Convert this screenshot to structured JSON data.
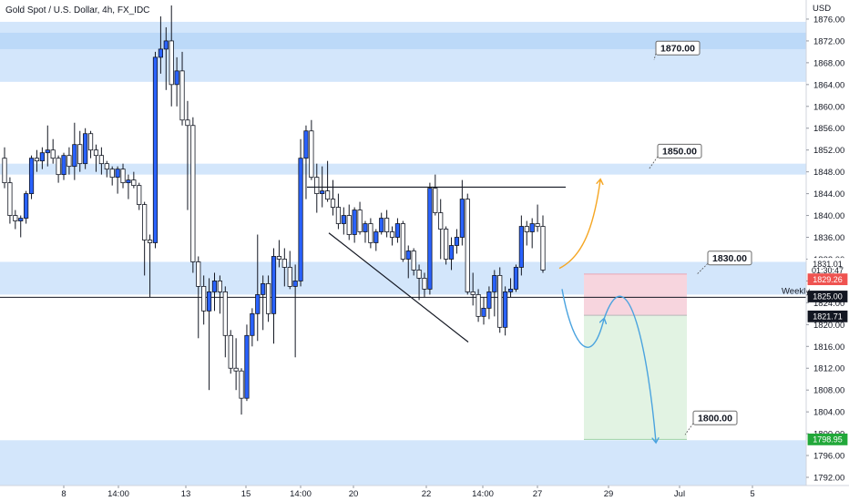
{
  "chart_data": {
    "type": "candlestick",
    "title": "Gold Spot / U.S. Dollar, 4h, FX_IDC",
    "currency": "USD",
    "y_ticks": [
      "1876.00",
      "1872.00",
      "1868.00",
      "1864.00",
      "1860.00",
      "1856.00",
      "1852.00",
      "1848.00",
      "1844.00",
      "1840.00",
      "1836.00",
      "1832.00",
      "1828.00",
      "1824.00",
      "1820.00",
      "1816.00",
      "1812.00",
      "1808.00",
      "1804.00",
      "1800.00",
      "1796.00",
      "1792.00"
    ],
    "ylim": [
      1790.5,
      1879.5
    ],
    "x_ticks": [
      {
        "label": "8",
        "x": 70
      },
      {
        "label": "14:00",
        "x": 130
      },
      {
        "label": "13",
        "x": 204
      },
      {
        "label": "15",
        "x": 270
      },
      {
        "label": "14:00",
        "x": 330
      },
      {
        "label": "20",
        "x": 388
      },
      {
        "label": "22",
        "x": 468
      },
      {
        "label": "14:00",
        "x": 530
      },
      {
        "label": "27",
        "x": 590
      },
      {
        "label": "29",
        "x": 668
      },
      {
        "label": "Jul",
        "x": 746
      },
      {
        "label": "5",
        "x": 826
      }
    ],
    "zones": [
      {
        "low": 1864.5,
        "high": 1875.5,
        "label": "1870.00"
      },
      {
        "low": 1870.5,
        "high": 1873.5,
        "label": ""
      },
      {
        "low": 1847.5,
        "high": 1849.5,
        "label": "1850.00"
      },
      {
        "low": 1825.5,
        "high": 1831.5,
        "label": "1830.00"
      },
      {
        "low": 1790.5,
        "high": 1798.8,
        "label": "1800.00"
      }
    ],
    "weekly_level": {
      "value": 1825.0,
      "label": "Weekly"
    },
    "candles": [
      [
        1850.5,
        1852.5,
        1845.0,
        1846.0
      ],
      [
        1846.0,
        1847.0,
        1838.5,
        1840.0
      ],
      [
        1840.0,
        1841.0,
        1837.5,
        1839.0
      ],
      [
        1839.0,
        1840.0,
        1836.0,
        1839.5
      ],
      [
        1839.5,
        1844.5,
        1838.5,
        1844.0
      ],
      [
        1844.0,
        1851.0,
        1843.0,
        1850.5
      ],
      [
        1850.5,
        1852.0,
        1848.0,
        1850.0
      ],
      [
        1850.0,
        1852.5,
        1848.5,
        1851.5
      ],
      [
        1851.5,
        1856.5,
        1849.0,
        1852.0
      ],
      [
        1852.0,
        1854.0,
        1849.5,
        1850.5
      ],
      [
        1850.5,
        1851.0,
        1846.0,
        1847.5
      ],
      [
        1847.5,
        1851.5,
        1846.5,
        1851.0
      ],
      [
        1851.0,
        1852.5,
        1847.5,
        1849.0
      ],
      [
        1849.0,
        1857.0,
        1846.5,
        1853.0
      ],
      [
        1853.0,
        1855.5,
        1848.0,
        1849.5
      ],
      [
        1849.5,
        1856.0,
        1848.5,
        1855.0
      ],
      [
        1855.0,
        1855.5,
        1850.5,
        1852.0
      ],
      [
        1852.0,
        1853.0,
        1848.0,
        1851.0
      ],
      [
        1851.0,
        1852.5,
        1847.5,
        1849.5
      ],
      [
        1849.5,
        1850.0,
        1847.0,
        1848.5
      ],
      [
        1848.5,
        1849.0,
        1845.5,
        1847.0
      ],
      [
        1847.0,
        1849.0,
        1844.0,
        1848.5
      ],
      [
        1848.5,
        1849.5,
        1845.0,
        1846.0
      ],
      [
        1846.0,
        1847.5,
        1843.0,
        1846.5
      ],
      [
        1846.5,
        1848.0,
        1845.0,
        1845.5
      ],
      [
        1845.5,
        1846.0,
        1841.0,
        1842.0
      ],
      [
        1842.0,
        1842.5,
        1829.0,
        1835.5
      ],
      [
        1835.5,
        1836.5,
        1825.0,
        1835.0
      ],
      [
        1835.0,
        1870.0,
        1834.0,
        1869.0
      ],
      [
        1869.0,
        1876.5,
        1866.0,
        1870.5
      ],
      [
        1870.5,
        1874.5,
        1863.0,
        1872.0
      ],
      [
        1872.0,
        1878.5,
        1860.0,
        1864.0
      ],
      [
        1864.0,
        1869.0,
        1860.0,
        1866.5
      ],
      [
        1866.5,
        1870.0,
        1856.5,
        1857.5
      ],
      [
        1857.5,
        1861.0,
        1841.0,
        1856.5
      ],
      [
        1856.5,
        1858.0,
        1829.5,
        1831.5
      ],
      [
        1831.5,
        1832.5,
        1817.5,
        1827.0
      ],
      [
        1827.0,
        1829.0,
        1820.0,
        1822.5
      ],
      [
        1822.5,
        1828.5,
        1808.0,
        1826.0
      ],
      [
        1826.0,
        1829.5,
        1822.5,
        1828.0
      ],
      [
        1828.0,
        1829.0,
        1822.0,
        1826.0
      ],
      [
        1826.0,
        1827.0,
        1814.0,
        1818.0
      ],
      [
        1818.0,
        1819.0,
        1811.0,
        1812.0
      ],
      [
        1812.0,
        1817.5,
        1808.0,
        1811.5
      ],
      [
        1811.5,
        1812.0,
        1803.5,
        1806.5
      ],
      [
        1806.5,
        1820.0,
        1806.0,
        1818.0
      ],
      [
        1818.0,
        1823.0,
        1816.0,
        1822.0
      ],
      [
        1822.0,
        1836.5,
        1817.0,
        1825.5
      ],
      [
        1825.5,
        1829.0,
        1819.0,
        1827.5
      ],
      [
        1827.5,
        1829.0,
        1820.5,
        1822.0
      ],
      [
        1822.0,
        1834.0,
        1816.5,
        1832.5
      ],
      [
        1832.5,
        1835.5,
        1830.5,
        1832.0
      ],
      [
        1832.0,
        1834.0,
        1827.0,
        1830.5
      ],
      [
        1830.5,
        1833.5,
        1826.5,
        1827.0
      ],
      [
        1827.0,
        1831.0,
        1814.0,
        1828.0
      ],
      [
        1828.0,
        1854.0,
        1827.0,
        1850.5
      ],
      [
        1850.5,
        1856.5,
        1843.0,
        1855.5
      ],
      [
        1855.5,
        1857.5,
        1846.5,
        1847.0
      ],
      [
        1847.0,
        1849.5,
        1840.5,
        1844.0
      ],
      [
        1844.0,
        1849.0,
        1841.5,
        1844.5
      ],
      [
        1844.5,
        1850.0,
        1842.5,
        1843.0
      ],
      [
        1843.0,
        1846.5,
        1840.0,
        1841.5
      ],
      [
        1841.5,
        1844.0,
        1837.5,
        1838.5
      ],
      [
        1838.5,
        1841.5,
        1836.5,
        1840.0
      ],
      [
        1840.0,
        1842.0,
        1835.5,
        1836.5
      ],
      [
        1836.5,
        1841.5,
        1835.0,
        1841.0
      ],
      [
        1841.0,
        1842.5,
        1836.5,
        1837.0
      ],
      [
        1837.0,
        1839.0,
        1835.0,
        1838.5
      ],
      [
        1838.5,
        1839.5,
        1834.0,
        1835.0
      ],
      [
        1835.0,
        1837.5,
        1833.5,
        1837.0
      ],
      [
        1837.0,
        1840.5,
        1836.5,
        1839.5
      ],
      [
        1839.5,
        1841.0,
        1836.0,
        1837.0
      ],
      [
        1837.0,
        1838.0,
        1834.5,
        1836.0
      ],
      [
        1836.0,
        1839.5,
        1835.0,
        1838.5
      ],
      [
        1838.5,
        1839.0,
        1831.5,
        1832.0
      ],
      [
        1832.0,
        1834.5,
        1828.5,
        1833.5
      ],
      [
        1833.5,
        1834.0,
        1829.0,
        1830.0
      ],
      [
        1830.0,
        1831.0,
        1824.5,
        1828.5
      ],
      [
        1828.5,
        1829.5,
        1825.0,
        1826.5
      ],
      [
        1826.5,
        1846.0,
        1825.5,
        1845.0
      ],
      [
        1845.0,
        1847.5,
        1840.0,
        1840.5
      ],
      [
        1840.5,
        1843.0,
        1832.0,
        1837.5
      ],
      [
        1837.5,
        1838.0,
        1831.0,
        1832.0
      ],
      [
        1832.0,
        1836.0,
        1830.0,
        1834.5
      ],
      [
        1834.5,
        1837.5,
        1833.0,
        1836.0
      ],
      [
        1836.0,
        1846.5,
        1834.5,
        1843.0
      ],
      [
        1843.0,
        1844.0,
        1825.5,
        1826.0
      ],
      [
        1826.0,
        1829.5,
        1823.5,
        1825.5
      ],
      [
        1825.5,
        1826.5,
        1820.5,
        1821.5
      ],
      [
        1821.5,
        1825.0,
        1820.0,
        1823.0
      ],
      [
        1823.0,
        1827.0,
        1821.0,
        1826.0
      ],
      [
        1826.0,
        1830.0,
        1821.5,
        1829.0
      ],
      [
        1829.0,
        1830.5,
        1818.5,
        1819.5
      ],
      [
        1819.5,
        1827.0,
        1818.0,
        1826.0
      ],
      [
        1826.0,
        1828.5,
        1825.0,
        1826.5
      ],
      [
        1826.5,
        1831.0,
        1826.0,
        1830.5
      ],
      [
        1830.5,
        1840.0,
        1829.0,
        1838.0
      ],
      [
        1838.0,
        1839.0,
        1834.5,
        1837.0
      ],
      [
        1837.0,
        1839.5,
        1834.0,
        1838.5
      ],
      [
        1838.5,
        1842.0,
        1837.0,
        1838.0
      ],
      [
        1838.0,
        1840.0,
        1829.5,
        1830.0
      ]
    ],
    "candle_colors": {
      "up": "#2962ff",
      "down": "#ffffff",
      "border": "#131722"
    }
  },
  "price_tags": {
    "current": {
      "price": "1831.01",
      "time": "01:30:47"
    },
    "stop_loss": "1829.26",
    "weekly": "1825.00",
    "entry": "1821.71",
    "target": "1798.95"
  },
  "colors": {
    "zone": "#d3e6fb",
    "zone_dark": "#bcd9f8",
    "up_candle": "#2962ff",
    "risk_fill": "#f7d5de",
    "reward_fill": "#e2f3e3",
    "orange_arrow": "#f5a623",
    "blue_arrow": "#4aa3df",
    "tag_current": "#ffffff",
    "tag_sl": "#ef5350",
    "tag_dark": "#131722",
    "tag_target": "#22a83a"
  }
}
